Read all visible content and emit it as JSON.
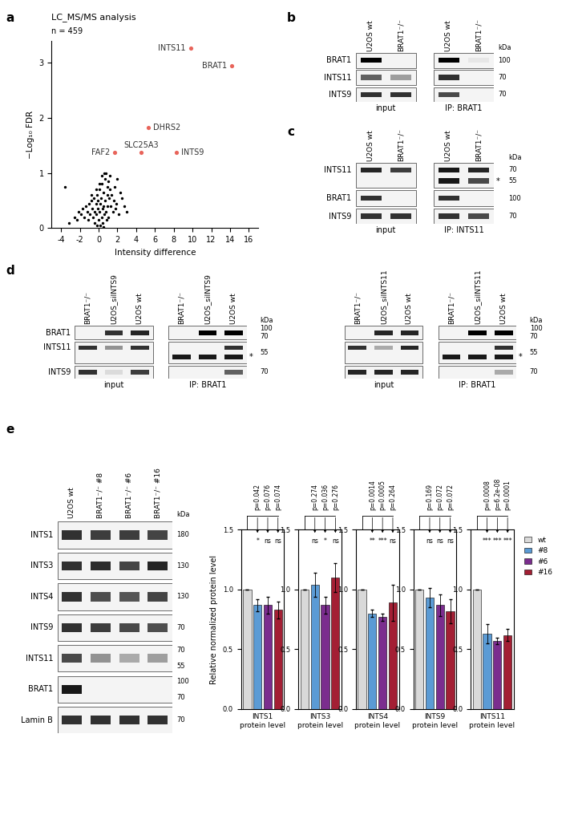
{
  "panel_labels": [
    "a",
    "b",
    "c",
    "d",
    "e"
  ],
  "kda_header": "kDa",
  "chart_data": [
    {
      "type": "scatter",
      "title": "LC_MS/MS analysis",
      "subtitle": "n = 459",
      "x_label": "Intensity difference",
      "y_label": "−Log₁₀ FDR",
      "xlim": [
        -5,
        17
      ],
      "xticks": [
        -4,
        -2,
        0,
        2,
        4,
        6,
        8,
        10,
        12,
        14,
        16
      ],
      "ylim": [
        0,
        3.4
      ],
      "yticks": [
        0,
        1,
        2,
        3
      ],
      "grid": false,
      "series": [
        {
          "color": "#000000",
          "x": [
            -3.6,
            -3.2,
            -2.6,
            -2.3,
            -2.1,
            -1.9,
            -1.7,
            -1.5,
            -1.4,
            -1.2,
            -1.1,
            -1.0,
            -0.9,
            -0.8,
            -0.7,
            -0.6,
            -0.5,
            -0.45,
            -0.4,
            -0.3,
            -0.25,
            -0.2,
            -0.15,
            -0.1,
            -0.05,
            0.0,
            0.05,
            0.1,
            0.15,
            0.2,
            0.25,
            0.3,
            0.35,
            0.4,
            0.45,
            0.5,
            0.55,
            0.6,
            0.65,
            0.7,
            0.75,
            0.8,
            0.85,
            0.9,
            0.95,
            1.0,
            1.05,
            1.1,
            1.2,
            1.3,
            1.4,
            1.5,
            1.6,
            1.7,
            1.8,
            1.9,
            2.0,
            2.1,
            2.3,
            2.5,
            2.7,
            3.0,
            0.3,
            0.6,
            0.9,
            -0.3,
            0.1,
            1.2,
            -0.8,
            0.5
          ],
          "values": [
            0.75,
            0.1,
            0.2,
            0.15,
            0.3,
            0.25,
            0.35,
            0.2,
            0.4,
            0.3,
            0.15,
            0.45,
            0.25,
            0.5,
            0.35,
            0.2,
            0.55,
            0.3,
            0.1,
            0.45,
            0.25,
            0.6,
            0.05,
            0.35,
            0.5,
            0.15,
            0.7,
            0.3,
            0.45,
            0.05,
            0.55,
            0.2,
            0.8,
            0.35,
            0.1,
            0.65,
            0.4,
            0.25,
            0.9,
            0.5,
            0.3,
            1.0,
            0.15,
            0.6,
            0.4,
            0.85,
            0.2,
            0.55,
            0.7,
            0.4,
            0.6,
            0.3,
            0.5,
            0.75,
            0.35,
            0.45,
            0.9,
            0.25,
            0.65,
            0.55,
            0.4,
            0.3,
            0.95,
            1.0,
            0.75,
            0.7,
            0.8,
            0.95,
            0.6,
            0.02
          ]
        },
        {
          "color": "#e8645a",
          "labels": [
            "INTS11",
            "BRAT1",
            "DHRS2",
            "SLC25A3",
            "INTS9",
            "FAF2"
          ],
          "x": [
            9.8,
            14.2,
            5.3,
            4.5,
            8.3,
            1.7
          ],
          "values": [
            3.27,
            2.95,
            1.83,
            1.38,
            1.38,
            1.38
          ]
        }
      ]
    },
    {
      "type": "bar",
      "x_label": "INTS1\nprotein level",
      "y_label": "Relative normalized protein level",
      "categories": [
        "wt",
        "#8",
        "#6",
        "#16"
      ],
      "colors": [
        "#d9d9d9",
        "#5b9bd5",
        "#7b2d8e",
        "#a31f34"
      ],
      "values": [
        1.0,
        0.87,
        0.87,
        0.83
      ],
      "errors": [
        0.0,
        0.05,
        0.07,
        0.07
      ],
      "ylim": [
        0,
        1.5
      ],
      "yticks": [
        0.0,
        0.5,
        1.0,
        1.5
      ],
      "tick_labels": "y",
      "p_values": [
        "p=0.042",
        "p=0.076",
        "p=0.074"
      ],
      "significance": [
        "*",
        "ns",
        "ns"
      ]
    },
    {
      "type": "bar",
      "x_label": "INTS3\nprotein level",
      "categories": [
        "wt",
        "#8",
        "#6",
        "#16"
      ],
      "colors": [
        "#d9d9d9",
        "#5b9bd5",
        "#7b2d8e",
        "#a31f34"
      ],
      "values": [
        1.0,
        1.04,
        0.87,
        1.1
      ],
      "errors": [
        0.0,
        0.1,
        0.07,
        0.12
      ],
      "ylim": [
        0,
        1.5
      ],
      "yticks": [
        0.0,
        0.5,
        1.0,
        1.5
      ],
      "tick_labels": "y",
      "p_values": [
        "p=0.274",
        "p=0.036",
        "p=0.276"
      ],
      "significance": [
        "ns",
        "*",
        "ns"
      ]
    },
    {
      "type": "bar",
      "x_label": "INTS4\nprotein level",
      "categories": [
        "wt",
        "#8",
        "#6",
        "#16"
      ],
      "colors": [
        "#d9d9d9",
        "#5b9bd5",
        "#7b2d8e",
        "#a31f34"
      ],
      "values": [
        1.0,
        0.8,
        0.77,
        0.89
      ],
      "errors": [
        0.0,
        0.03,
        0.03,
        0.15
      ],
      "ylim": [
        0,
        1.5
      ],
      "yticks": [
        0.0,
        0.5,
        1.0,
        1.5
      ],
      "tick_labels": "y",
      "p_values": [
        "p=0.0014",
        "p=0.0005",
        "p=0.264"
      ],
      "significance": [
        "**",
        "***",
        "ns"
      ]
    },
    {
      "type": "bar",
      "x_label": "INTS9\nprotein level",
      "categories": [
        "wt",
        "#8",
        "#6",
        "#16"
      ],
      "colors": [
        "#d9d9d9",
        "#5b9bd5",
        "#7b2d8e",
        "#a31f34"
      ],
      "values": [
        1.0,
        0.93,
        0.87,
        0.82
      ],
      "errors": [
        0.0,
        0.08,
        0.09,
        0.1
      ],
      "ylim": [
        0,
        1.5
      ],
      "yticks": [
        0.0,
        0.5,
        1.0,
        1.5
      ],
      "tick_labels": "y",
      "p_values": [
        "p=0.169",
        "p=0.072",
        "p=0.072"
      ],
      "significance": [
        "ns",
        "ns",
        "ns"
      ]
    },
    {
      "type": "bar",
      "x_label": "INTS11\nprotein level",
      "categories": [
        "wt",
        "#8",
        "#6",
        "#16"
      ],
      "colors": [
        "#d9d9d9",
        "#5b9bd5",
        "#7b2d8e",
        "#a31f34"
      ],
      "values": [
        1.0,
        0.63,
        0.57,
        0.62
      ],
      "errors": [
        0.0,
        0.08,
        0.03,
        0.05
      ],
      "ylim": [
        0,
        1.5
      ],
      "yticks": [
        0.0,
        0.5,
        1.0,
        1.5
      ],
      "tick_labels": "y",
      "p_values": [
        "p=0.0008",
        "p=6.2e-08",
        "p=0.0001"
      ],
      "significance": [
        "***",
        "***",
        "***"
      ],
      "legend": "upper left"
    }
  ],
  "blots": [
    {
      "rows": [
        {
          "name": "BRAT1",
          "kda": [
            "100"
          ]
        },
        {
          "name": "INTS11",
          "kda": [
            "70"
          ]
        },
        {
          "name": "INTS9",
          "kda": [
            "70"
          ]
        }
      ],
      "sections": [
        {
          "caption": "input",
          "lanes": [
            "U2OS wt",
            "BRAT1⁻/⁻"
          ],
          "bands": [
            [
              1.0,
              0.0
            ],
            [
              0.6,
              0.35
            ],
            [
              0.8,
              0.8
            ]
          ]
        },
        {
          "caption": "IP: BRAT1",
          "lanes": [
            "U2OS wt",
            "BRAT1⁻/⁻"
          ],
          "bands": [
            [
              1.0,
              0.05
            ],
            [
              0.8,
              0.0
            ],
            [
              0.7,
              0.0
            ]
          ]
        }
      ]
    },
    {
      "rows": [
        {
          "name": "INTS11",
          "kda": [
            "70",
            "55"
          ]
        },
        {
          "name": "BRAT1",
          "kda": [
            "100"
          ]
        },
        {
          "name": "INTS9",
          "kda": [
            "70"
          ]
        }
      ],
      "sections": [
        {
          "caption": "input",
          "lanes": [
            "U2OS wt",
            "BRAT1⁻/⁻"
          ],
          "bands": [
            [
              0.85,
              0.75
            ],
            [
              0.8,
              0.0
            ],
            [
              0.8,
              0.8
            ]
          ]
        },
        {
          "caption": "IP: INTS11",
          "lanes": [
            "U2OS wt",
            "BRAT1⁻/⁻"
          ],
          "bands": [
            [
              0.9,
              0.85
            ],
            [
              0.8,
              0.0
            ],
            [
              0.8,
              0.7
            ]
          ],
          "lower_bands": [
            [
              0.9,
              0.7
            ],
            null,
            null
          ],
          "lower_mark": "*"
        }
      ]
    },
    {
      "rows": [
        {
          "name": "BRAT1",
          "kda": [
            "100",
            "70"
          ]
        },
        {
          "name": "INTS11",
          "kda": [
            "55"
          ]
        },
        {
          "name": "INTS9",
          "kda": [
            "70"
          ]
        }
      ],
      "sections": [
        {
          "caption": "input",
          "lanes": [
            "BRAT1⁻/⁻",
            "U2OS_siINTS9",
            "U2OS wt"
          ],
          "bands": [
            [
              0.0,
              0.8,
              0.85
            ],
            [
              0.8,
              0.4,
              0.8
            ],
            [
              0.8,
              0.1,
              0.75
            ]
          ]
        },
        {
          "caption": "IP: BRAT1",
          "lanes": [
            "BRAT1⁻/⁻",
            "U2OS_siINTS9",
            "U2OS wt"
          ],
          "bands": [
            [
              0.0,
              1.0,
              1.0
            ],
            [
              0.0,
              0.0,
              0.8
            ],
            [
              0.0,
              0.0,
              0.6
            ]
          ],
          "lower_bands": [
            null,
            [
              0.9,
              0.9,
              0.9
            ],
            null
          ],
          "lower_mark": "*"
        }
      ]
    },
    {
      "rows": [
        {
          "kda": [
            "100",
            "70"
          ]
        },
        {
          "kda": [
            "55"
          ]
        },
        {
          "kda": [
            "70"
          ]
        }
      ],
      "sections": [
        {
          "caption": "input",
          "lanes": [
            "BRAT1⁻/⁻",
            "U2OS_siINTS11",
            "U2OS wt"
          ],
          "bands": [
            [
              0.0,
              0.85,
              0.85
            ],
            [
              0.8,
              0.3,
              0.85
            ],
            [
              0.85,
              0.85,
              0.85
            ]
          ]
        },
        {
          "caption": "IP: BRAT1",
          "lanes": [
            "BRAT1⁻/⁻",
            "U2OS_siINTS11",
            "U2OS wt"
          ],
          "bands": [
            [
              0.0,
              1.0,
              1.0
            ],
            [
              0.0,
              0.0,
              0.8
            ],
            [
              0.0,
              0.0,
              0.3
            ]
          ],
          "lower_bands": [
            null,
            [
              0.9,
              0.9,
              0.9
            ],
            null
          ],
          "lower_mark": "*"
        }
      ]
    },
    {
      "rows": [
        {
          "name": "INTS1",
          "kda": [
            "180"
          ]
        },
        {
          "name": "INTS3",
          "kda": [
            "130"
          ]
        },
        {
          "name": "INTS4",
          "kda": [
            "130"
          ]
        },
        {
          "name": "INTS9",
          "kda": [
            "70"
          ]
        },
        {
          "name": "INTS11",
          "kda": [
            "70",
            "55"
          ]
        },
        {
          "name": "BRAT1",
          "kda": [
            "100",
            "70"
          ]
        },
        {
          "name": "Lamin B",
          "kda": [
            "70"
          ]
        }
      ],
      "sections": [
        {
          "lanes": [
            "U2OS wt",
            "BRAT1⁻/⁻ #8",
            "BRAT1⁻/⁻ #6",
            "BRAT1⁻/⁻ #16"
          ],
          "bands": [
            [
              0.8,
              0.75,
              0.75,
              0.72
            ],
            [
              0.8,
              0.82,
              0.72,
              0.85
            ],
            [
              0.8,
              0.68,
              0.65,
              0.72
            ],
            [
              0.8,
              0.75,
              0.7,
              0.68
            ],
            [
              0.7,
              0.4,
              0.3,
              0.35
            ],
            [
              0.9,
              0.0,
              0.0,
              0.0
            ],
            [
              0.8,
              0.8,
              0.8,
              0.8
            ]
          ]
        }
      ]
    }
  ]
}
